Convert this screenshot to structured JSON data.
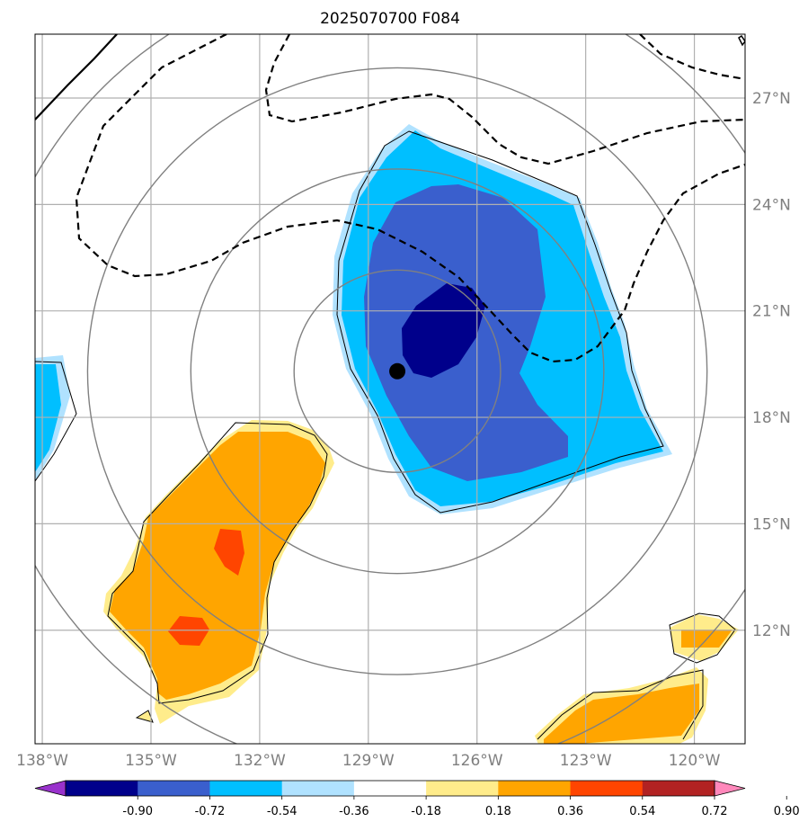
{
  "title": "2025070700 F084",
  "map": {
    "lon_range": [
      -138.2,
      -118.6
    ],
    "lat_range": [
      8.8,
      28.8
    ],
    "lon_ticks": [
      {
        "value": -138,
        "label": "138°W"
      },
      {
        "value": -135,
        "label": "135°W"
      },
      {
        "value": -132,
        "label": "132°W"
      },
      {
        "value": -129,
        "label": "129°W"
      },
      {
        "value": -126,
        "label": "126°W"
      },
      {
        "value": -123,
        "label": "123°W"
      },
      {
        "value": -120,
        "label": "120°W"
      }
    ],
    "lat_ticks": [
      {
        "value": 27,
        "label": "27°N"
      },
      {
        "value": 24,
        "label": "24°N"
      },
      {
        "value": 21,
        "label": "21°N"
      },
      {
        "value": 18,
        "label": "18°N"
      },
      {
        "value": 15,
        "label": "15°N"
      },
      {
        "value": 12,
        "label": "12°N"
      }
    ],
    "center": {
      "lon": -128.2,
      "lat": 19.3
    },
    "range_rings_deg": [
      2.85,
      5.7,
      8.55,
      11.4
    ],
    "colors": {
      "ring": "#808080",
      "grid": "#b0b0b0",
      "center_marker": "#000000",
      "outline": "#000000"
    }
  },
  "colorbar": {
    "levels": [
      "-0.90",
      "-0.72",
      "-0.54",
      "-0.36",
      "-0.18",
      "0.18",
      "0.36",
      "0.54",
      "0.72",
      "0.90"
    ],
    "under_color": "#9932cc",
    "over_color": "#ff88bb",
    "colors": [
      "#00008b",
      "#3a5fcd",
      "#00bfff",
      "#b0e2ff",
      "#ffffff",
      "#ffec8b",
      "#ffa500",
      "#ff4500",
      "#b22222"
    ]
  }
}
